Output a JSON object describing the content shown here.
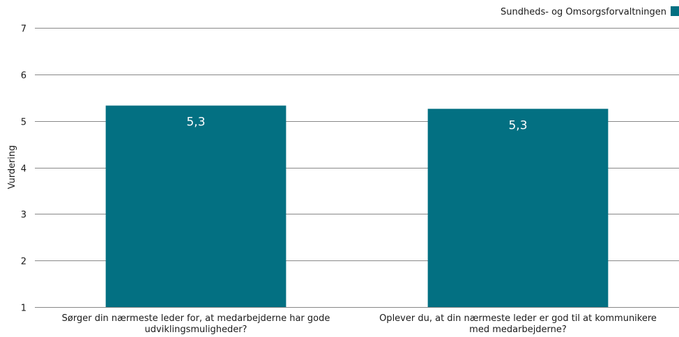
{
  "chart_data": {
    "type": "bar",
    "categories": [
      [
        "Sørger din nærmeste leder for, at medarbejderne har gode",
        "udviklingsmuligheder?"
      ],
      [
        "Oplever du, at din nærmeste leder er god til at kommunikere",
        "med medarbejderne?"
      ]
    ],
    "series": [
      {
        "name": "Sundheds- og Omsorgsforvaltningen",
        "color": "#037082",
        "values": [
          5.33,
          5.26
        ],
        "labels": [
          "5,3",
          "5,3"
        ]
      }
    ],
    "ylabel": "Vurdering",
    "ylim": [
      1,
      7
    ],
    "yticks": [
      "1",
      "2",
      "3",
      "4",
      "5",
      "6",
      "7"
    ],
    "grid": true,
    "legend_position": "top-right"
  }
}
